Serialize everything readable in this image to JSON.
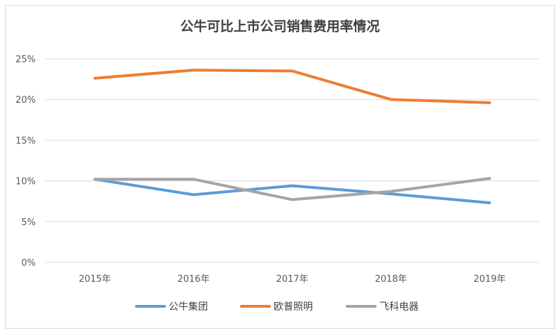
{
  "chart_data": {
    "type": "line",
    "title": "公牛可比上市公司销售费用率情况",
    "xlabel": "",
    "ylabel": "",
    "categories": [
      "2015年",
      "2016年",
      "2017年",
      "2018年",
      "2019年"
    ],
    "y_ticks": [
      "0%",
      "5%",
      "10%",
      "15%",
      "20%",
      "25%"
    ],
    "ylim": [
      0,
      25
    ],
    "grid": true,
    "legend_position": "bottom",
    "series": [
      {
        "name": "公牛集团",
        "color": "#5b9bd5",
        "values": [
          10.2,
          8.3,
          9.4,
          8.4,
          7.3
        ]
      },
      {
        "name": "欧普照明",
        "color": "#ed7d31",
        "values": [
          22.6,
          23.6,
          23.5,
          20.0,
          19.6
        ]
      },
      {
        "name": "飞科电器",
        "color": "#a5a5a5",
        "values": [
          10.2,
          10.2,
          7.7,
          8.7,
          10.3
        ]
      }
    ]
  }
}
